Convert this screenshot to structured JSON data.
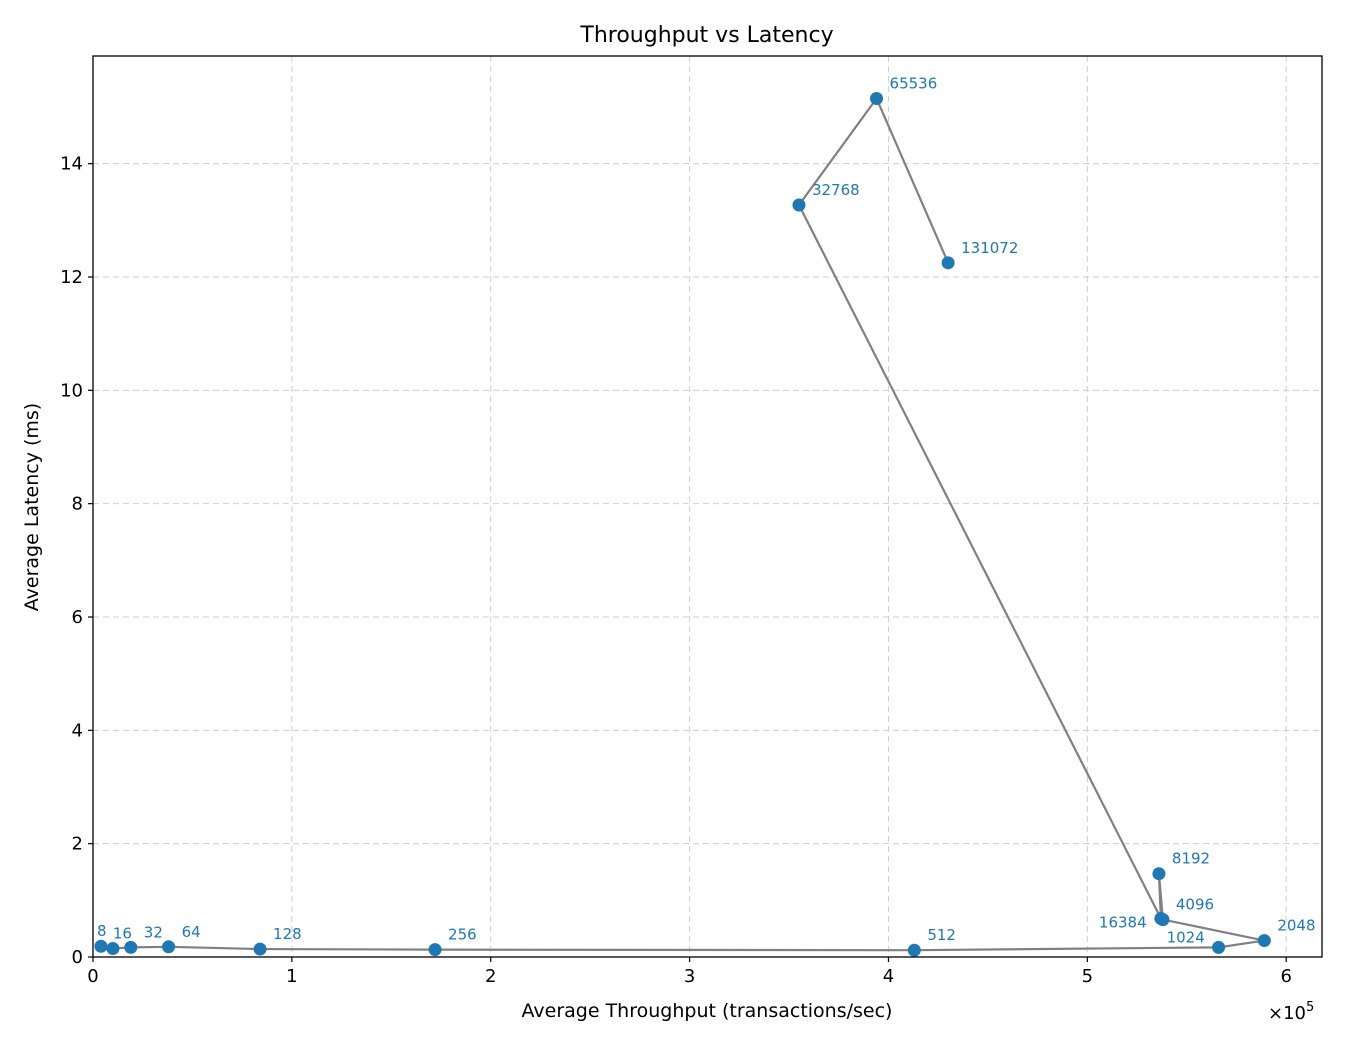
{
  "chart_data": {
    "type": "line",
    "title": "Throughput vs Latency",
    "xlabel": "Average Throughput (transactions/sec)",
    "ylabel": "Average Latency (ms)",
    "x_multiplier_label": "×10",
    "x_multiplier_exp": "5",
    "xlim": [
      0,
      6.18
    ],
    "ylim": [
      0,
      15.9
    ],
    "x_ticks": [
      0,
      1,
      2,
      3,
      4,
      5,
      6
    ],
    "y_ticks": [
      0,
      2,
      4,
      6,
      8,
      10,
      12,
      14
    ],
    "grid": true,
    "line_color": "#808080",
    "marker_color": "#1f77b4",
    "label_color": "#1f77b4",
    "points": [
      {
        "label": "8",
        "x": 0.04,
        "y": 0.19
      },
      {
        "label": "16",
        "x": 0.1,
        "y": 0.15
      },
      {
        "label": "32",
        "x": 0.19,
        "y": 0.17
      },
      {
        "label": "64",
        "x": 0.38,
        "y": 0.18
      },
      {
        "label": "128",
        "x": 0.84,
        "y": 0.14
      },
      {
        "label": "256",
        "x": 1.72,
        "y": 0.13
      },
      {
        "label": "512",
        "x": 4.13,
        "y": 0.12
      },
      {
        "label": "1024",
        "x": 5.66,
        "y": 0.17
      },
      {
        "label": "2048",
        "x": 5.89,
        "y": 0.29
      },
      {
        "label": "4096",
        "x": 5.38,
        "y": 0.66
      },
      {
        "label": "8192",
        "x": 5.36,
        "y": 1.47
      },
      {
        "label": "16384",
        "x": 5.37,
        "y": 0.68
      },
      {
        "label": "32768",
        "x": 3.55,
        "y": 13.27
      },
      {
        "label": "65536",
        "x": 3.94,
        "y": 15.15
      },
      {
        "label": "131072",
        "x": 4.3,
        "y": 12.25
      }
    ]
  }
}
